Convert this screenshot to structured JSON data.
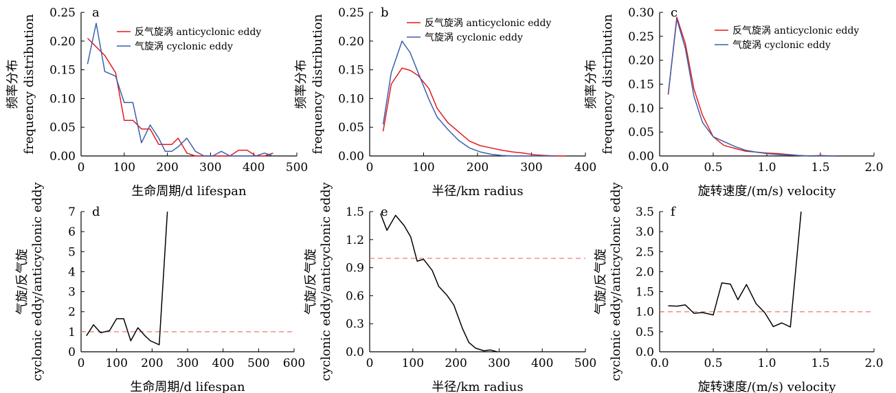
{
  "colors": {
    "anticyclonic": "#e41a1c",
    "cyclonic": "#3a5fad",
    "ratio": "#000000",
    "reference": "#e87a7a"
  },
  "chart_data": [
    {
      "panel": "a",
      "type": "line",
      "xlabel": "生命周期/d lifespan",
      "ylabel_cn": "频率分布",
      "ylabel_en": "frequency distribution",
      "xlim": [
        0,
        500
      ],
      "ylim": [
        0,
        0.25
      ],
      "xticks": [
        0,
        100,
        200,
        300,
        400,
        500
      ],
      "yticks": [
        0,
        0.05,
        0.1,
        0.15,
        0.2,
        0.25
      ],
      "legend": "top-right",
      "series": [
        {
          "name": "反气旋涡 anticyclonic eddy",
          "color_key": "anticyclonic",
          "x": [
            15,
            35,
            55,
            80,
            100,
            120,
            140,
            160,
            180,
            195,
            210,
            225,
            245,
            265,
            285,
            305,
            325,
            345,
            365,
            385,
            405,
            425,
            445
          ],
          "y": [
            0.205,
            0.19,
            0.175,
            0.145,
            0.062,
            0.062,
            0.047,
            0.047,
            0.02,
            0.02,
            0.02,
            0.031,
            0.005,
            0.0,
            0.0,
            0.0,
            0.0,
            0.0,
            0.01,
            0.01,
            0.0,
            0.0,
            0.005
          ]
        },
        {
          "name": "气旋涡 cyclonic eddy",
          "color_key": "cyclonic",
          "x": [
            15,
            35,
            55,
            80,
            100,
            120,
            140,
            160,
            180,
            195,
            210,
            225,
            245,
            265,
            285,
            305,
            325,
            345,
            365,
            385,
            405,
            425,
            445
          ],
          "y": [
            0.16,
            0.231,
            0.147,
            0.139,
            0.093,
            0.093,
            0.023,
            0.054,
            0.031,
            0.008,
            0.008,
            0.016,
            0.031,
            0.008,
            0.0,
            0.0,
            0.008,
            0.0,
            0.0,
            0.0,
            0.0,
            0.005,
            0.0
          ]
        }
      ]
    },
    {
      "panel": "b",
      "type": "line",
      "xlabel": "半径/km radius",
      "ylabel_cn": "频率分布",
      "ylabel_en": "frequency distribution",
      "xlim": [
        0,
        400
      ],
      "ylim": [
        0,
        0.25
      ],
      "xticks": [
        0,
        100,
        200,
        300,
        400
      ],
      "yticks": [
        0,
        0.05,
        0.1,
        0.15,
        0.2,
        0.25
      ],
      "legend": "top-right",
      "series": [
        {
          "name": "反气旋涡 anticyclonic eddy",
          "color_key": "anticyclonic",
          "x": [
            25,
            40,
            60,
            75,
            90,
            110,
            125,
            145,
            165,
            185,
            205,
            225,
            245,
            265,
            285,
            305,
            325,
            345,
            365
          ],
          "y": [
            0.043,
            0.125,
            0.153,
            0.149,
            0.14,
            0.117,
            0.083,
            0.058,
            0.042,
            0.026,
            0.018,
            0.014,
            0.01,
            0.007,
            0.005,
            0.002,
            0.001,
            0.0,
            0.0
          ]
        },
        {
          "name": "气旋涡 cyclonic eddy",
          "color_key": "cyclonic",
          "x": [
            25,
            40,
            60,
            75,
            90,
            110,
            125,
            145,
            165,
            185,
            205,
            225,
            245,
            265,
            285,
            305,
            325,
            345
          ],
          "y": [
            0.055,
            0.145,
            0.2,
            0.18,
            0.145,
            0.098,
            0.068,
            0.046,
            0.027,
            0.014,
            0.007,
            0.003,
            0.001,
            0.0,
            0.0,
            0.0,
            0.0,
            0.0
          ]
        }
      ]
    },
    {
      "panel": "c",
      "type": "line",
      "xlabel": "旋转速度/(m/s) velocity",
      "ylabel_cn": "频率分布",
      "ylabel_en": "frequency distribution",
      "xlim": [
        0,
        2.0
      ],
      "ylim": [
        0,
        0.3
      ],
      "xticks": [
        0,
        0.5,
        1.0,
        1.5,
        2.0
      ],
      "yticks": [
        0,
        0.05,
        0.1,
        0.15,
        0.2,
        0.25,
        0.3
      ],
      "legend": "top-right",
      "series": [
        {
          "name": "反气旋涡 anticyclonic eddy",
          "color_key": "anticyclonic",
          "x": [
            0.08,
            0.16,
            0.24,
            0.32,
            0.4,
            0.5,
            0.6,
            0.7,
            0.8,
            0.9,
            1.0,
            1.1,
            1.2,
            1.3,
            1.4,
            1.5,
            1.6,
            1.65
          ],
          "y": [
            0.128,
            0.29,
            0.235,
            0.14,
            0.085,
            0.04,
            0.022,
            0.016,
            0.01,
            0.008,
            0.006,
            0.005,
            0.003,
            0.001,
            0.0,
            0.001,
            0.0,
            0.0
          ]
        },
        {
          "name": "气旋涡 cyclonic eddy",
          "color_key": "cyclonic",
          "x": [
            0.08,
            0.16,
            0.24,
            0.32,
            0.4,
            0.5,
            0.6,
            0.7,
            0.8,
            0.9,
            1.0,
            1.1,
            1.2,
            1.3,
            1.4,
            1.5,
            1.6,
            1.65
          ],
          "y": [
            0.13,
            0.286,
            0.225,
            0.125,
            0.07,
            0.04,
            0.03,
            0.02,
            0.012,
            0.008,
            0.005,
            0.003,
            0.002,
            0.001,
            0.0,
            0.0,
            0.0,
            0.0
          ]
        }
      ]
    },
    {
      "panel": "d",
      "type": "line",
      "xlabel": "生命周期/d lifespan",
      "ylabel_cn": "气旋/反气旋",
      "ylabel_en": "cyclonic eddy/anticyclonic eddy",
      "xlim": [
        0,
        600
      ],
      "ylim": [
        0,
        7
      ],
      "xticks": [
        0,
        100,
        200,
        300,
        400,
        500,
        600
      ],
      "yticks": [
        0,
        1,
        2,
        3,
        4,
        5,
        6,
        7
      ],
      "reference_y": 1,
      "series": [
        {
          "name": "",
          "color_key": "ratio",
          "x": [
            15,
            35,
            55,
            80,
            100,
            120,
            140,
            160,
            180,
            195,
            220,
            243
          ],
          "y": [
            0.8,
            1.35,
            0.95,
            1.05,
            1.65,
            1.65,
            0.55,
            1.2,
            0.8,
            0.55,
            0.35,
            7.0
          ]
        }
      ]
    },
    {
      "panel": "e",
      "type": "line",
      "xlabel": "半径/km radius",
      "ylabel_cn": "气旋/反气旋",
      "ylabel_en": "cyclonic eddy/anticyclonic eddy",
      "xlim": [
        0,
        500
      ],
      "ylim": [
        0,
        1.5
      ],
      "xticks": [
        0,
        100,
        200,
        300,
        400,
        500
      ],
      "yticks": [
        0,
        0.3,
        0.6,
        0.9,
        1.2,
        1.5
      ],
      "reference_y": 1,
      "series": [
        {
          "name": "",
          "color_key": "ratio",
          "x": [
            25,
            40,
            60,
            80,
            95,
            110,
            125,
            145,
            160,
            180,
            195,
            215,
            230,
            245,
            265,
            280,
            295
          ],
          "y": [
            1.48,
            1.3,
            1.46,
            1.35,
            1.23,
            0.97,
            0.99,
            0.87,
            0.7,
            0.6,
            0.5,
            0.25,
            0.1,
            0.04,
            0.01,
            0.02,
            0.0
          ]
        }
      ]
    },
    {
      "panel": "f",
      "type": "line",
      "xlabel": "旋转速度/(m/s) velocity",
      "ylabel_cn": "气旋/反气旋",
      "ylabel_en": "cyclonic eddy/anticyclonic eddy",
      "xlim": [
        0,
        2.0
      ],
      "ylim": [
        0,
        3.5
      ],
      "xticks": [
        0,
        0.5,
        1.0,
        1.5,
        2.0
      ],
      "yticks": [
        0,
        0.5,
        1.0,
        1.5,
        2.0,
        2.5,
        3.0,
        3.5
      ],
      "reference_y": 1,
      "series": [
        {
          "name": "",
          "color_key": "ratio",
          "x": [
            0.08,
            0.16,
            0.24,
            0.32,
            0.4,
            0.5,
            0.58,
            0.66,
            0.73,
            0.81,
            0.9,
            0.98,
            1.06,
            1.14,
            1.22,
            1.32
          ],
          "y": [
            1.15,
            1.14,
            1.17,
            0.96,
            0.98,
            0.92,
            1.72,
            1.69,
            1.3,
            1.68,
            1.2,
            0.98,
            0.63,
            0.72,
            0.62,
            3.5
          ]
        }
      ]
    }
  ]
}
